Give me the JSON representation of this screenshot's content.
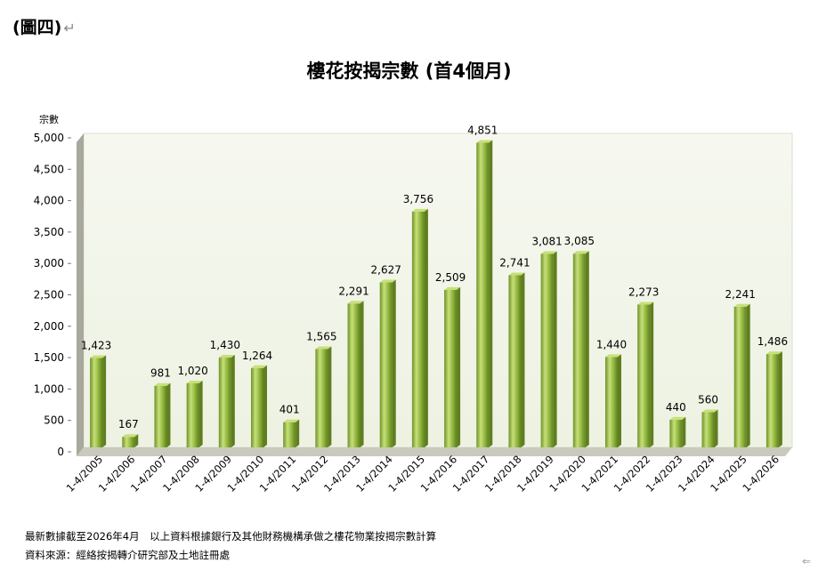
{
  "figure_label": "(圖四)",
  "return_mark": "↵",
  "footnotes": {
    "line1": "最新數據截至2026年4月　以上資料根據銀行及其他財務機構承做之樓花物業按揭宗數計算",
    "line2": "資料來源：經絡按揭轉介研究部及土地註冊處"
  },
  "colors": {
    "bar_fill": "#8db33a",
    "bar_highlight": "#c7e07a",
    "plot_bg": "#f2f6ea",
    "wall": "#a8a89c"
  },
  "chart_data": {
    "type": "bar",
    "title": "樓花按揭宗數 (首4個月)",
    "ylabel": "宗數",
    "xlabel": "",
    "ylim": [
      0,
      5000
    ],
    "yticks": [
      0,
      500,
      1000,
      1500,
      2000,
      2500,
      3000,
      3500,
      4000,
      4500,
      5000
    ],
    "ytick_labels": [
      "0",
      "500",
      "1,000",
      "1,500",
      "2,000",
      "2,500",
      "3,000",
      "3,500",
      "4,000",
      "4,500",
      "5,000"
    ],
    "categories": [
      "1-4/2005",
      "1-4/2006",
      "1-4/2007",
      "1-4/2008",
      "1-4/2009",
      "1-4/2010",
      "1-4/2011",
      "1-4/2012",
      "1-4/2013",
      "1-4/2014",
      "1-4/2015",
      "1-4/2016",
      "1-4/2017",
      "1-4/2018",
      "1-4/2019",
      "1-4/2020",
      "1-4/2021",
      "1-4/2022",
      "1-4/2023",
      "1-4/2024",
      "1-4/2025",
      "1-4/2026"
    ],
    "values": [
      1423,
      167,
      981,
      1020,
      1430,
      1264,
      401,
      1565,
      2291,
      2627,
      3756,
      2509,
      4851,
      2741,
      3081,
      3085,
      1440,
      2273,
      440,
      560,
      2241,
      1486
    ],
    "data_labels": [
      "1,423",
      "167",
      "981",
      "1,020",
      "1,430",
      "1,264",
      "401",
      "1,565",
      "2,291",
      "2,627",
      "3,756",
      "2,509",
      "4,851",
      "2,741",
      "3,081",
      "3,085",
      "1,440",
      "2,273",
      "440",
      "560",
      "2,241",
      "1,486"
    ],
    "grid": false,
    "legend": "none"
  }
}
